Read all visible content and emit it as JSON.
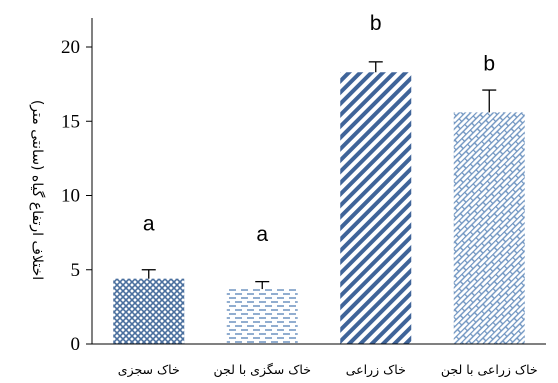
{
  "chart_data": {
    "type": "bar",
    "categories": [
      "خاک سجزی",
      "خاک سگزی با لجن",
      "خاک زراعی",
      "خاک زراعی با لجن"
    ],
    "values": [
      4.4,
      3.7,
      18.3,
      15.6
    ],
    "errors": [
      0.6,
      0.5,
      0.7,
      1.5
    ],
    "significance": [
      "a",
      "a",
      "b",
      "b"
    ],
    "ylabel": "اختلاف ارتفاع گیاه (سانتی متر)",
    "ylim": [
      0,
      20
    ],
    "yticks": [
      0,
      5,
      10,
      15,
      20
    ],
    "grid": false,
    "legend": "none",
    "patterns": [
      "diamond-crosshatch",
      "dashed-horizontal",
      "diagonal-stripes",
      "brick-diagonal"
    ],
    "colors": {
      "fill": "#4a6f9e",
      "background": "#ffffff",
      "axis": "#000000"
    }
  }
}
